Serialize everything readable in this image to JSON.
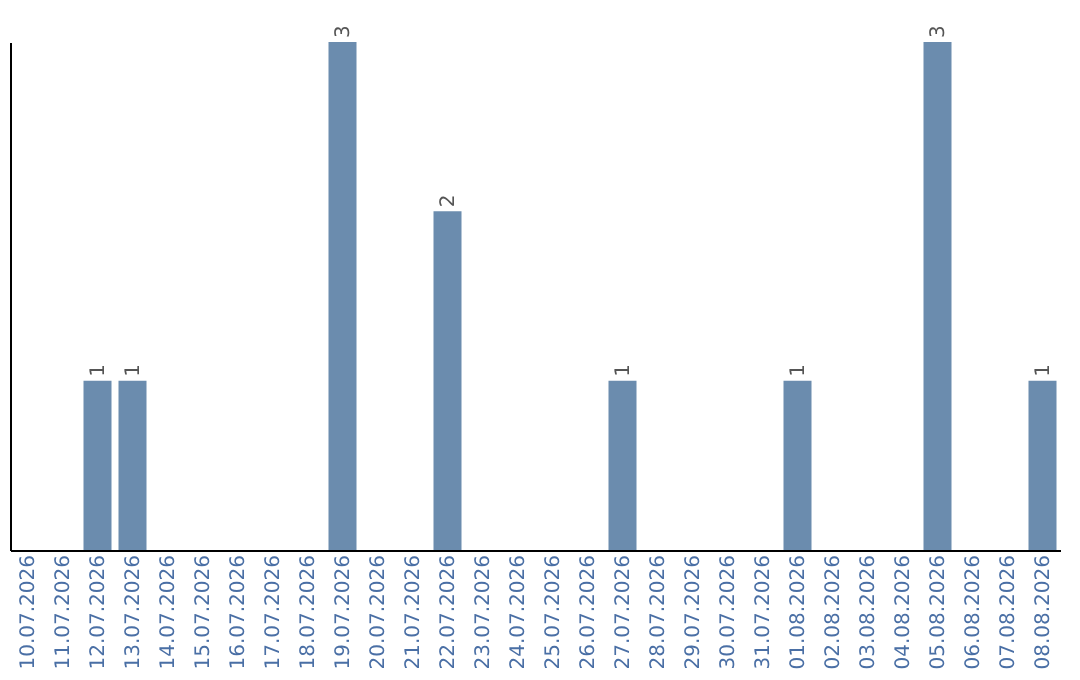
{
  "chart_data": {
    "type": "bar",
    "categories": [
      "10.07.2026",
      "11.07.2026",
      "12.07.2026",
      "13.07.2026",
      "14.07.2026",
      "15.07.2026",
      "16.07.2026",
      "17.07.2026",
      "18.07.2026",
      "19.07.2026",
      "20.07.2026",
      "21.07.2026",
      "22.07.2026",
      "23.07.2026",
      "24.07.2026",
      "25.07.2026",
      "26.07.2026",
      "27.07.2026",
      "28.07.2026",
      "29.07.2026",
      "30.07.2026",
      "31.07.2026",
      "01.08.2026",
      "02.08.2026",
      "03.08.2026",
      "04.08.2026",
      "05.08.2026",
      "06.08.2026",
      "07.08.2026",
      "08.08.2026"
    ],
    "values": [
      null,
      null,
      1,
      1,
      null,
      null,
      null,
      null,
      null,
      3,
      null,
      null,
      2,
      null,
      null,
      null,
      null,
      1,
      null,
      null,
      null,
      null,
      1,
      null,
      null,
      null,
      3,
      null,
      null,
      1
    ],
    "color": "#6b8cae",
    "data_labels": true,
    "tick_labels": "x",
    "grid": false
  }
}
